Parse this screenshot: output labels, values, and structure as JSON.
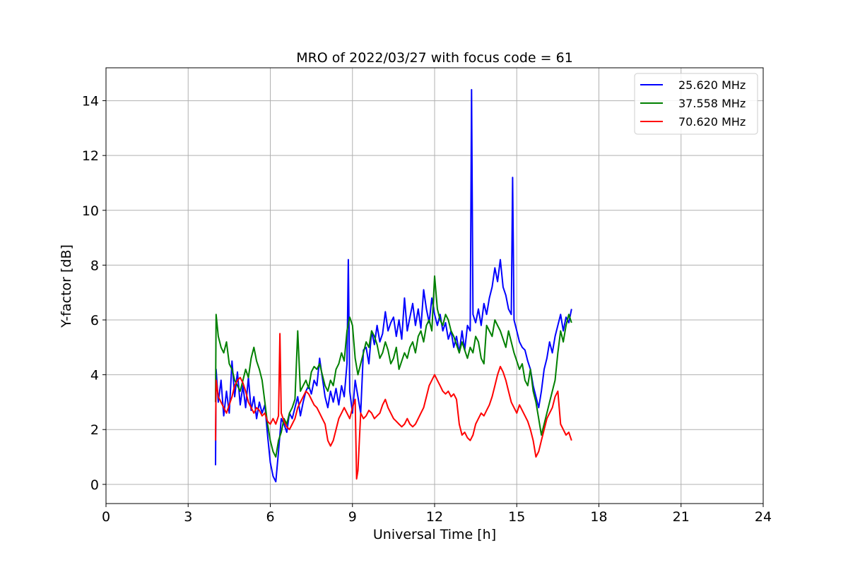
{
  "chart_data": {
    "type": "line",
    "title": "MRO of 2022/03/27 with focus code = 61",
    "xlabel": "Universal Time [h]",
    "ylabel": "Y-factor [dB]",
    "xlim": [
      0,
      24
    ],
    "ylim": [
      -0.7,
      15.2
    ],
    "xticks": [
      0,
      3,
      6,
      9,
      12,
      15,
      18,
      21,
      24
    ],
    "yticks": [
      0,
      2,
      4,
      6,
      8,
      10,
      12,
      14
    ],
    "grid": true,
    "legend_position": "top-right",
    "series": [
      {
        "name": "25.620 MHz",
        "color": "#0000ff",
        "x": [
          4.0,
          4.02,
          4.1,
          4.2,
          4.3,
          4.4,
          4.5,
          4.6,
          4.7,
          4.8,
          4.9,
          5.0,
          5.1,
          5.2,
          5.3,
          5.4,
          5.5,
          5.6,
          5.7,
          5.8,
          5.9,
          6.0,
          6.1,
          6.2,
          6.3,
          6.4,
          6.5,
          6.6,
          6.7,
          6.8,
          6.9,
          7.0,
          7.1,
          7.2,
          7.3,
          7.4,
          7.5,
          7.6,
          7.7,
          7.8,
          7.9,
          8.0,
          8.1,
          8.2,
          8.3,
          8.4,
          8.5,
          8.6,
          8.7,
          8.8,
          8.85,
          8.9,
          9.0,
          9.1,
          9.2,
          9.3,
          9.4,
          9.5,
          9.6,
          9.7,
          9.8,
          9.9,
          10.0,
          10.1,
          10.2,
          10.3,
          10.4,
          10.5,
          10.6,
          10.7,
          10.8,
          10.9,
          11.0,
          11.1,
          11.2,
          11.3,
          11.4,
          11.5,
          11.6,
          11.7,
          11.8,
          11.9,
          12.0,
          12.1,
          12.2,
          12.3,
          12.4,
          12.5,
          12.6,
          12.7,
          12.8,
          12.9,
          13.0,
          13.1,
          13.2,
          13.3,
          13.35,
          13.4,
          13.5,
          13.6,
          13.7,
          13.8,
          13.9,
          14.0,
          14.1,
          14.2,
          14.3,
          14.4,
          14.5,
          14.6,
          14.7,
          14.8,
          14.85,
          14.9,
          15.0,
          15.1,
          15.2,
          15.3,
          15.4,
          15.5,
          15.6,
          15.7,
          15.8,
          15.9,
          16.0,
          16.1,
          16.2,
          16.3,
          16.4,
          16.5,
          16.6,
          16.7,
          16.8,
          16.9,
          17.0
        ],
        "y": [
          0.7,
          4.2,
          3.0,
          3.8,
          2.5,
          3.4,
          2.6,
          4.5,
          3.2,
          4.1,
          2.9,
          3.6,
          2.8,
          3.9,
          2.7,
          3.2,
          2.4,
          3.0,
          2.6,
          2.9,
          1.8,
          0.8,
          0.3,
          0.1,
          1.2,
          2.4,
          2.2,
          1.9,
          2.6,
          2.4,
          2.8,
          3.2,
          2.5,
          3.0,
          3.4,
          3.6,
          3.3,
          3.8,
          3.6,
          4.6,
          3.9,
          3.2,
          2.8,
          3.4,
          3.0,
          3.5,
          2.9,
          3.6,
          3.2,
          4.4,
          8.2,
          3.4,
          2.6,
          3.8,
          3.2,
          2.6,
          4.9,
          5.0,
          4.4,
          5.6,
          5.1,
          5.8,
          5.2,
          5.5,
          6.3,
          5.6,
          5.9,
          6.1,
          5.4,
          6.0,
          5.3,
          6.8,
          5.6,
          6.1,
          6.6,
          5.8,
          6.4,
          5.7,
          7.1,
          6.4,
          5.9,
          6.8,
          6.2,
          5.8,
          6.2,
          5.6,
          5.9,
          5.3,
          5.6,
          5.0,
          5.4,
          4.8,
          5.6,
          4.9,
          5.8,
          5.6,
          14.4,
          6.2,
          5.9,
          6.4,
          5.8,
          6.6,
          6.2,
          6.8,
          7.2,
          7.9,
          7.4,
          8.2,
          7.2,
          6.9,
          6.4,
          6.2,
          11.2,
          6.0,
          5.6,
          5.2,
          5.0,
          4.9,
          4.5,
          4.2,
          3.6,
          3.2,
          2.8,
          3.4,
          4.2,
          4.6,
          5.2,
          4.8,
          5.4,
          5.8,
          6.2,
          5.6,
          6.1,
          5.9,
          6.4
        ]
      },
      {
        "name": "37.558 MHz",
        "color": "#008000",
        "x": [
          4.0,
          4.02,
          4.1,
          4.2,
          4.3,
          4.4,
          4.5,
          4.6,
          4.7,
          4.8,
          4.9,
          5.0,
          5.1,
          5.2,
          5.3,
          5.4,
          5.5,
          5.6,
          5.7,
          5.8,
          5.9,
          6.0,
          6.1,
          6.2,
          6.3,
          6.4,
          6.5,
          6.6,
          6.7,
          6.8,
          6.9,
          7.0,
          7.1,
          7.2,
          7.3,
          7.4,
          7.5,
          7.6,
          7.7,
          7.8,
          7.9,
          8.0,
          8.1,
          8.2,
          8.3,
          8.4,
          8.5,
          8.6,
          8.7,
          8.8,
          8.9,
          9.0,
          9.1,
          9.2,
          9.3,
          9.4,
          9.5,
          9.6,
          9.7,
          9.8,
          9.9,
          10.0,
          10.1,
          10.2,
          10.3,
          10.4,
          10.5,
          10.6,
          10.7,
          10.8,
          10.9,
          11.0,
          11.1,
          11.2,
          11.3,
          11.4,
          11.5,
          11.6,
          11.7,
          11.8,
          11.9,
          12.0,
          12.1,
          12.2,
          12.3,
          12.4,
          12.5,
          12.6,
          12.7,
          12.8,
          12.9,
          13.0,
          13.1,
          13.2,
          13.3,
          13.4,
          13.5,
          13.6,
          13.7,
          13.8,
          13.9,
          14.0,
          14.1,
          14.2,
          14.3,
          14.4,
          14.5,
          14.6,
          14.7,
          14.8,
          14.9,
          15.0,
          15.1,
          15.2,
          15.3,
          15.4,
          15.5,
          15.6,
          15.7,
          15.8,
          15.9,
          16.0,
          16.1,
          16.2,
          16.3,
          16.4,
          16.5,
          16.6,
          16.7,
          16.8,
          16.9,
          17.0
        ],
        "y": [
          3.0,
          6.2,
          5.4,
          5.0,
          4.8,
          5.2,
          4.4,
          4.2,
          3.8,
          3.6,
          3.4,
          3.8,
          4.2,
          3.9,
          4.6,
          5.0,
          4.5,
          4.2,
          3.8,
          3.0,
          2.2,
          1.6,
          1.2,
          1.0,
          1.6,
          1.9,
          2.4,
          2.2,
          2.6,
          2.8,
          3.1,
          5.6,
          3.4,
          3.6,
          3.8,
          3.5,
          4.1,
          4.3,
          4.2,
          4.4,
          4.0,
          3.6,
          3.4,
          3.8,
          3.6,
          4.2,
          4.4,
          4.8,
          4.5,
          5.6,
          6.1,
          5.8,
          4.6,
          4.0,
          4.4,
          4.8,
          5.2,
          5.0,
          5.6,
          5.4,
          5.1,
          4.6,
          4.8,
          5.2,
          4.9,
          4.4,
          4.6,
          5.0,
          4.2,
          4.5,
          4.8,
          4.6,
          5.0,
          5.2,
          4.8,
          5.4,
          5.6,
          5.2,
          5.8,
          6.0,
          5.6,
          7.6,
          6.4,
          6.0,
          5.8,
          6.2,
          6.0,
          5.6,
          5.4,
          5.1,
          4.8,
          5.2,
          4.9,
          4.6,
          5.0,
          4.8,
          5.4,
          5.2,
          4.6,
          4.4,
          5.8,
          5.6,
          5.4,
          6.0,
          5.8,
          5.6,
          5.3,
          5.0,
          5.6,
          5.2,
          4.8,
          4.5,
          4.2,
          4.4,
          3.8,
          3.6,
          4.2,
          3.4,
          3.0,
          2.4,
          1.8,
          2.2,
          2.6,
          3.0,
          3.4,
          3.8,
          4.8,
          5.6,
          5.2,
          5.8,
          6.2,
          5.9
        ]
      },
      {
        "name": "70.620 MHz",
        "color": "#ff0000",
        "x": [
          4.0,
          4.02,
          4.1,
          4.2,
          4.3,
          4.4,
          4.5,
          4.6,
          4.7,
          4.8,
          4.9,
          5.0,
          5.1,
          5.2,
          5.3,
          5.4,
          5.5,
          5.6,
          5.7,
          5.8,
          5.9,
          6.0,
          6.1,
          6.2,
          6.3,
          6.35,
          6.4,
          6.5,
          6.6,
          6.7,
          6.8,
          6.9,
          7.0,
          7.1,
          7.2,
          7.3,
          7.4,
          7.5,
          7.6,
          7.7,
          7.8,
          7.9,
          8.0,
          8.1,
          8.2,
          8.3,
          8.4,
          8.5,
          8.6,
          8.7,
          8.8,
          8.9,
          9.0,
          9.1,
          9.15,
          9.2,
          9.3,
          9.4,
          9.5,
          9.6,
          9.7,
          9.8,
          9.9,
          10.0,
          10.1,
          10.2,
          10.3,
          10.4,
          10.5,
          10.6,
          10.7,
          10.8,
          10.9,
          11.0,
          11.1,
          11.2,
          11.3,
          11.4,
          11.5,
          11.6,
          11.7,
          11.8,
          11.9,
          12.0,
          12.1,
          12.2,
          12.3,
          12.4,
          12.5,
          12.6,
          12.7,
          12.8,
          12.9,
          13.0,
          13.1,
          13.2,
          13.3,
          13.4,
          13.5,
          13.6,
          13.7,
          13.8,
          13.9,
          14.0,
          14.1,
          14.2,
          14.3,
          14.4,
          14.5,
          14.6,
          14.7,
          14.8,
          14.9,
          15.0,
          15.1,
          15.2,
          15.3,
          15.4,
          15.5,
          15.6,
          15.7,
          15.8,
          15.9,
          16.0,
          16.1,
          16.2,
          16.3,
          16.4,
          16.5,
          16.6,
          16.7,
          16.8,
          16.9,
          17.0
        ],
        "y": [
          1.6,
          3.8,
          3.2,
          3.0,
          2.8,
          2.6,
          2.9,
          3.2,
          3.6,
          3.8,
          3.9,
          3.7,
          3.4,
          3.0,
          2.8,
          2.6,
          2.8,
          2.7,
          2.5,
          2.6,
          2.3,
          2.2,
          2.4,
          2.2,
          2.5,
          5.5,
          2.6,
          2.3,
          2.1,
          2.0,
          2.2,
          2.4,
          2.8,
          3.0,
          3.2,
          3.4,
          3.3,
          3.1,
          2.9,
          2.8,
          2.6,
          2.4,
          2.2,
          1.6,
          1.4,
          1.6,
          2.0,
          2.4,
          2.6,
          2.8,
          2.6,
          2.4,
          2.8,
          3.1,
          0.2,
          0.5,
          2.6,
          2.4,
          2.5,
          2.7,
          2.6,
          2.4,
          2.5,
          2.6,
          2.9,
          3.1,
          2.8,
          2.6,
          2.4,
          2.3,
          2.2,
          2.1,
          2.2,
          2.4,
          2.2,
          2.1,
          2.2,
          2.4,
          2.6,
          2.8,
          3.2,
          3.6,
          3.8,
          4.0,
          3.8,
          3.6,
          3.4,
          3.3,
          3.4,
          3.2,
          3.3,
          3.1,
          2.2,
          1.8,
          1.9,
          1.7,
          1.6,
          1.8,
          2.2,
          2.4,
          2.6,
          2.5,
          2.7,
          2.9,
          3.2,
          3.6,
          4.0,
          4.3,
          4.1,
          3.8,
          3.4,
          3.0,
          2.8,
          2.6,
          2.9,
          2.7,
          2.5,
          2.3,
          2.0,
          1.6,
          1.0,
          1.2,
          1.6,
          2.0,
          2.4,
          2.6,
          2.8,
          3.2,
          3.4,
          2.2,
          2.0,
          1.8,
          1.9,
          1.6
        ]
      }
    ]
  }
}
